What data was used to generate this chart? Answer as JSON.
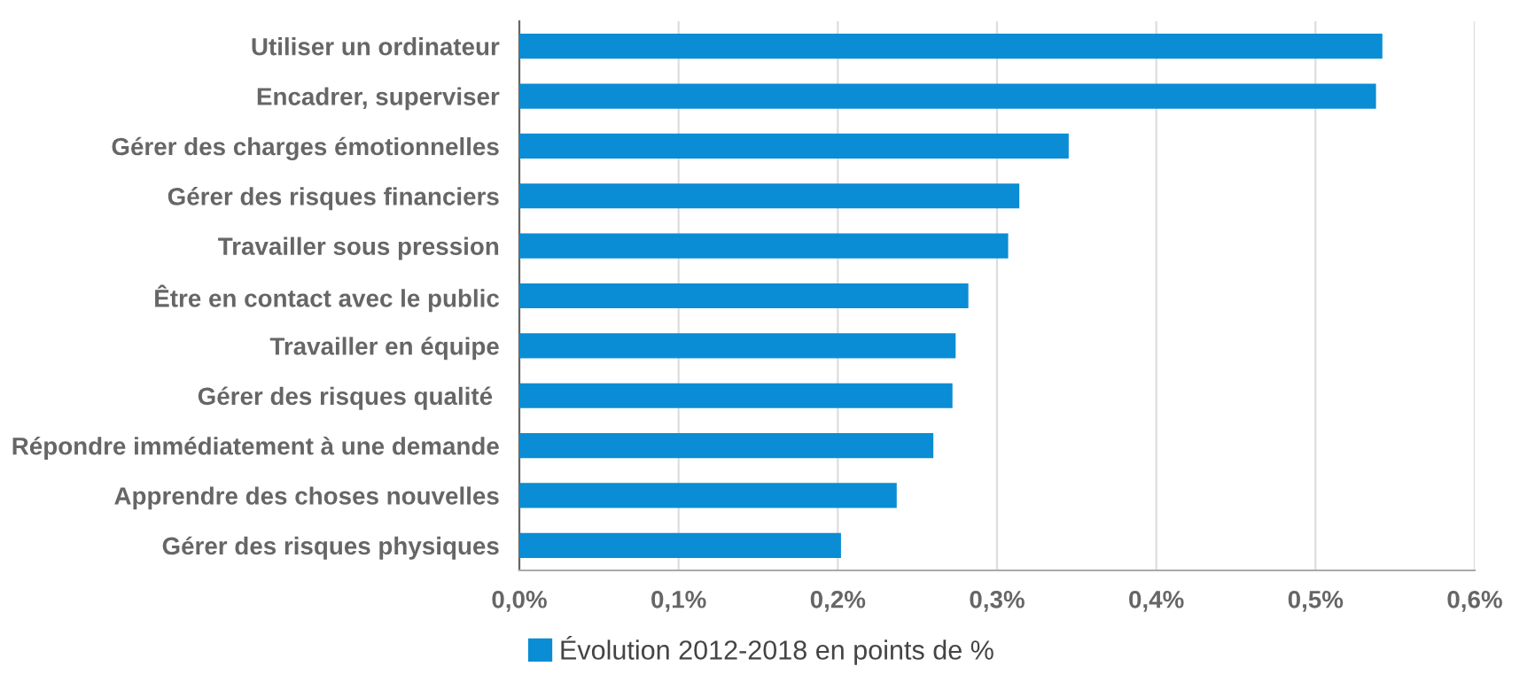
{
  "chart_data": {
    "type": "bar",
    "orientation": "horizontal",
    "categories": [
      "Utiliser un ordinateur",
      "Encadrer, superviser",
      "Gérer des charges émotionnelles",
      "Gérer des risques financiers",
      "Travailler sous pression",
      "Être en contact avec le public",
      "Travailler en équipe",
      "Gérer des risques qualité ",
      "Répondre immédiatement à une demande",
      "Apprendre des choses nouvelles",
      "Gérer des risques physiques"
    ],
    "series": [
      {
        "name": "Évolution 2012-2018 en points de %",
        "color": "#0a8dd4",
        "values": [
          0.542,
          0.538,
          0.345,
          0.314,
          0.307,
          0.282,
          0.274,
          0.272,
          0.26,
          0.237,
          0.202
        ]
      }
    ],
    "xlim": [
      0,
      0.6
    ],
    "xticks": [
      {
        "value": 0,
        "label": "0,0%"
      },
      {
        "value": 0.1,
        "label": "0,1%"
      },
      {
        "value": 0.2,
        "label": "0,2%"
      },
      {
        "value": 0.3,
        "label": "0,3%"
      },
      {
        "value": 0.4,
        "label": "0,4%"
      },
      {
        "value": 0.5,
        "label": "0,5%"
      },
      {
        "value": 0.6,
        "label": "0,6%"
      }
    ],
    "grid": "x",
    "legend": "bottom left"
  }
}
